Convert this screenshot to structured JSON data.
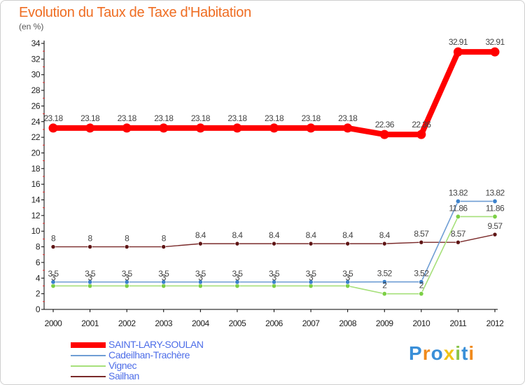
{
  "title": "Evolution du Taux de Taxe d'Habitation",
  "unit": "(en %)",
  "colors": {
    "title": "#ef6d22",
    "legend_text": "#4d6de8"
  },
  "chart_data": {
    "type": "line",
    "title": "Evolution du Taux de Taxe d'Habitation",
    "ylabel": "(en %)",
    "xlabel": "",
    "categories": [
      "2000",
      "2001",
      "2002",
      "2003",
      "2004",
      "2005",
      "2006",
      "2007",
      "2008",
      "2009",
      "2010",
      "2011",
      "2012"
    ],
    "ylim": [
      0,
      34
    ],
    "yticks": [
      0,
      2,
      4,
      6,
      8,
      10,
      12,
      14,
      16,
      18,
      20,
      22,
      24,
      26,
      28,
      30,
      32,
      34
    ],
    "grid": false,
    "legend_position": "bottom-left",
    "series": [
      {
        "name": "SAINT-LARY-SOULAN",
        "color": "#ff0000",
        "marker": "#ff0000",
        "values": [
          23.18,
          23.18,
          23.18,
          23.18,
          23.18,
          23.18,
          23.18,
          23.18,
          23.18,
          22.36,
          22.36,
          32.91,
          32.91
        ],
        "labels": [
          "23.18",
          "23.18",
          "23.18",
          "23.18",
          "23.18",
          "23.18",
          "23.18",
          "23.18",
          "23.18",
          "22.36",
          "22.36",
          "32.91",
          "32.91"
        ]
      },
      {
        "name": "Cadeilhan-Trachère",
        "color": "#6f9ed4",
        "marker": "#3c82cc",
        "values": [
          3.5,
          3.5,
          3.5,
          3.5,
          3.5,
          3.5,
          3.5,
          3.5,
          3.5,
          3.52,
          3.52,
          13.82,
          13.82
        ],
        "labels": [
          "3.5",
          "3.5",
          "3.5",
          "3.5",
          "3.5",
          "3.5",
          "3.5",
          "3.5",
          "3.5",
          "3.52",
          "3.52",
          "13.82",
          "13.82"
        ]
      },
      {
        "name": "Vignec",
        "color": "#a6e07a",
        "marker": "#7ccf45",
        "values": [
          3,
          3,
          3,
          3,
          3,
          3,
          3,
          3,
          3,
          2,
          2,
          11.86,
          11.86
        ],
        "labels": [
          "3",
          "3",
          "3",
          "3",
          "3",
          "3",
          "3",
          "3",
          "3",
          "2",
          "2",
          "11.86",
          "11.86"
        ]
      },
      {
        "name": "Sailhan",
        "color": "#7a2a2a",
        "marker": "#5e1414",
        "values": [
          8,
          8,
          8,
          8,
          8.4,
          8.4,
          8.4,
          8.4,
          8.4,
          8.4,
          8.57,
          8.57,
          9.57
        ],
        "labels": [
          "8",
          "8",
          "8",
          "8",
          "8.4",
          "8.4",
          "8.4",
          "8.4",
          "8.4",
          "8.4",
          "8.57",
          "8.57",
          "9.57"
        ]
      }
    ]
  },
  "legend": [
    {
      "label": "SAINT-LARY-SOULAN"
    },
    {
      "label": "Cadeilhan-Trachère"
    },
    {
      "label": "Vignec"
    },
    {
      "label": "Sailhan"
    }
  ],
  "logo": {
    "letters": [
      "P",
      "r",
      "o",
      "x",
      "i",
      "t",
      "i"
    ],
    "colors": [
      "#3a8fd8",
      "#f08a1c",
      "#3a8fd8",
      "#f0c419",
      "#8ac44a",
      "#3a8fd8",
      "#f08a1c"
    ]
  }
}
